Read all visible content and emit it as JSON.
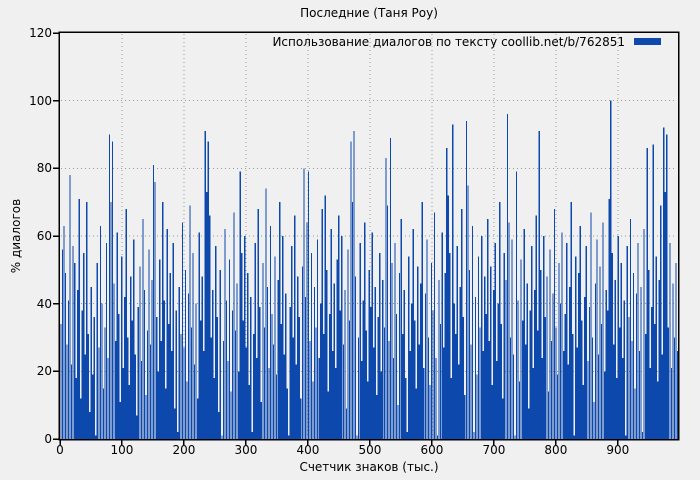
{
  "title": "Последние (Таня Роу)",
  "colors": {
    "background": "#f0f0f0",
    "bar": "#0d48ac",
    "grid": "#999999",
    "frame": "#000000",
    "text": "#000000"
  },
  "chart_data": {
    "type": "bar",
    "style": "impulses",
    "title": "Последние (Таня Роу)",
    "xlabel": "Счетчик знаков (тыс.)",
    "ylabel": "% диалогов",
    "legend": {
      "label": "Использование диалогов по тексту coollib.net/b/762851",
      "position": "top-right-inside"
    },
    "grid": "dotted",
    "x_axis": {
      "min": 0,
      "max": 997,
      "ticks": [
        0,
        100,
        200,
        300,
        400,
        500,
        600,
        700,
        800,
        900
      ]
    },
    "y_axis": {
      "min": 0,
      "max": 120,
      "ticks": [
        0,
        20,
        40,
        60,
        80,
        100,
        120
      ]
    },
    "series": [
      {
        "name": "Использование диалогов по тексту coollib.net/b/762851",
        "color": "#0d48ac",
        "x_start": 1.5,
        "x_step": 2.45,
        "values": [
          34,
          56,
          63,
          49,
          28,
          41,
          78,
          22,
          57,
          52,
          18,
          44,
          71,
          12,
          38,
          55,
          25,
          70,
          31,
          8,
          45,
          19,
          36,
          1,
          52,
          27,
          63,
          40,
          15,
          33,
          58,
          24,
          90,
          70,
          88,
          46,
          29,
          61,
          37,
          11,
          54,
          21,
          42,
          68,
          30,
          16,
          48,
          35,
          59,
          25,
          7,
          39,
          51,
          23,
          65,
          44,
          13,
          32,
          56,
          28,
          47,
          81,
          76,
          36,
          20,
          53,
          29,
          70,
          41,
          15,
          62,
          34,
          49,
          26,
          58,
          9,
          38,
          2,
          45,
          31,
          64,
          27,
          50,
          17,
          43,
          69,
          33,
          55,
          22,
          40,
          12,
          61,
          35,
          48,
          26,
          91,
          73,
          88,
          66,
          30,
          44,
          18,
          57,
          36,
          8,
          50,
          1,
          29,
          62,
          41,
          23,
          53,
          14,
          38,
          67,
          32,
          46,
          20,
          79,
          55,
          35,
          60,
          27,
          49,
          16,
          42,
          2,
          31,
          58,
          24,
          68,
          39,
          11,
          52,
          33,
          74,
          45,
          21,
          63,
          37,
          28,
          54,
          19,
          47,
          70,
          34,
          60,
          25,
          43,
          15,
          1,
          39,
          57,
          30,
          66,
          22,
          48,
          36,
          12,
          51,
          80,
          42,
          64,
          79,
          29,
          55,
          17,
          45,
          33,
          59,
          24,
          40,
          68,
          31,
          72,
          50,
          14,
          37,
          62,
          26,
          46,
          21,
          53,
          66,
          38,
          60,
          28,
          44,
          9,
          56,
          35,
          88,
          70,
          91,
          48,
          1,
          30,
          58,
          23,
          41,
          64,
          32,
          17,
          50,
          39,
          61,
          27,
          45,
          13,
          36,
          55,
          20,
          47,
          33,
          83,
          69,
          29,
          89,
          52,
          24,
          58,
          37,
          10,
          49,
          65,
          31,
          44,
          18,
          2,
          54,
          26,
          40,
          62,
          35,
          15,
          51,
          28,
          46,
          70,
          21,
          43,
          59,
          30,
          16,
          52,
          38,
          67,
          24,
          1,
          47,
          34,
          61,
          27,
          49,
          86,
          72,
          55,
          18,
          93,
          40,
          31,
          57,
          22,
          45,
          68,
          36,
          13,
          94,
          75,
          50,
          28,
          63,
          2,
          42,
          19,
          54,
          33,
          60,
          26,
          48,
          37,
          65,
          29,
          51,
          16,
          44,
          58,
          23,
          40,
          70,
          34,
          12,
          55,
          47,
          96,
          64,
          30,
          59,
          25,
          1,
          79,
          41,
          17,
          53,
          35,
          62,
          28,
          46,
          9,
          38,
          57,
          21,
          44,
          66,
          32,
          91,
          50,
          24,
          60,
          36,
          48,
          14,
          56,
          29,
          43,
          68,
          33,
          19,
          52,
          40,
          61,
          26,
          37,
          58,
          22,
          45,
          70,
          31,
          1,
          54,
          27,
          49,
          63,
          35,
          16,
          42,
          57,
          23,
          39,
          67,
          30,
          11,
          46,
          59,
          25,
          51,
          34,
          64,
          20,
          44,
          38,
          71,
          100,
          55,
          28,
          47,
          18,
          60,
          33,
          52,
          24,
          41,
          1,
          57,
          36,
          65,
          29,
          49,
          15,
          43,
          58,
          26,
          45,
          2,
          62,
          31,
          86,
          50,
          21,
          39,
          87,
          34,
          54,
          17,
          47,
          69,
          25,
          92,
          73,
          90,
          33,
          58,
          21,
          46,
          30,
          52,
          26
        ]
      }
    ]
  }
}
